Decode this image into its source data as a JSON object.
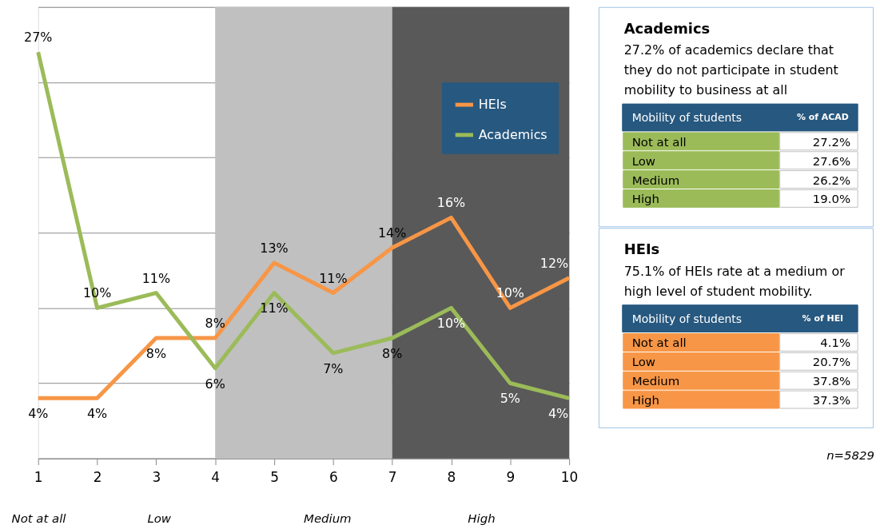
{
  "chart_data": [
    {
      "type": "line",
      "x": [
        1,
        2,
        3,
        4,
        5,
        6,
        7,
        8,
        9,
        10
      ],
      "xlim": [
        1,
        10
      ],
      "xticks": [
        1,
        2,
        3,
        4,
        5,
        6,
        7,
        8,
        9,
        10
      ],
      "ylim": [
        0,
        30
      ],
      "yticks": [
        {
          "value": 0,
          "label": null
        },
        {
          "value": 5,
          "label": null
        },
        {
          "value": 10,
          "label": null
        },
        {
          "value": 15,
          "label": null
        },
        {
          "value": 20,
          "label": null
        },
        {
          "value": 25,
          "label": null
        },
        {
          "value": 30,
          "label": null
        }
      ],
      "tick_labels": "x",
      "grid": "y",
      "legend": "top right",
      "line_style": "solid",
      "series": [
        {
          "name": "HEIs",
          "color": "#f79646",
          "values": [
            4,
            4,
            8,
            8,
            13,
            11,
            14,
            16,
            10,
            12
          ],
          "value_labels": [
            "4%",
            "4%",
            "8%",
            "8%",
            "13%",
            "11%",
            "14%",
            "16%",
            "10%",
            "12%"
          ]
        },
        {
          "name": "Academics",
          "color": "#9bbb59",
          "values": [
            27,
            10,
            11,
            6,
            11,
            7,
            8,
            10,
            5,
            4
          ],
          "value_labels": [
            "27%",
            "10%",
            "11%",
            "6%",
            "11%",
            "7%",
            "8%",
            "10%",
            "5%",
            "4%"
          ]
        }
      ],
      "bands": [
        {
          "axis": "x",
          "from": 4,
          "to": 7,
          "color": "#c0c0c0"
        },
        {
          "axis": "x",
          "from": 7,
          "to": 10,
          "color": "#595959"
        }
      ],
      "annotations": [
        "Not at all",
        "Low",
        "Medium",
        "High"
      ]
    },
    {
      "type": "other",
      "title": "Academics",
      "subtitle": "27.2% of academics declare that they do not participate in student mobility to business at all",
      "annotations": [
        "Mobility of students",
        "% of ACAD"
      ],
      "categories": [
        "Not at all",
        "Low",
        "Medium",
        "High"
      ],
      "value_labels": [
        "27.2%",
        "27.6%",
        "26.2%",
        "19.0%"
      ],
      "color": "#9bbb59"
    },
    {
      "type": "other",
      "title": "HEIs",
      "subtitle": "75.1% of HEIs rate at a medium or high level of student mobility.",
      "annotations": [
        "Mobility of students",
        "% of HEI",
        "n=5829"
      ],
      "categories": [
        "Not at all",
        "Low",
        "Medium",
        "High"
      ],
      "value_labels": [
        "4.1%",
        "20.7%",
        "37.8%",
        "37.3%"
      ],
      "color": "#f79646"
    }
  ]
}
